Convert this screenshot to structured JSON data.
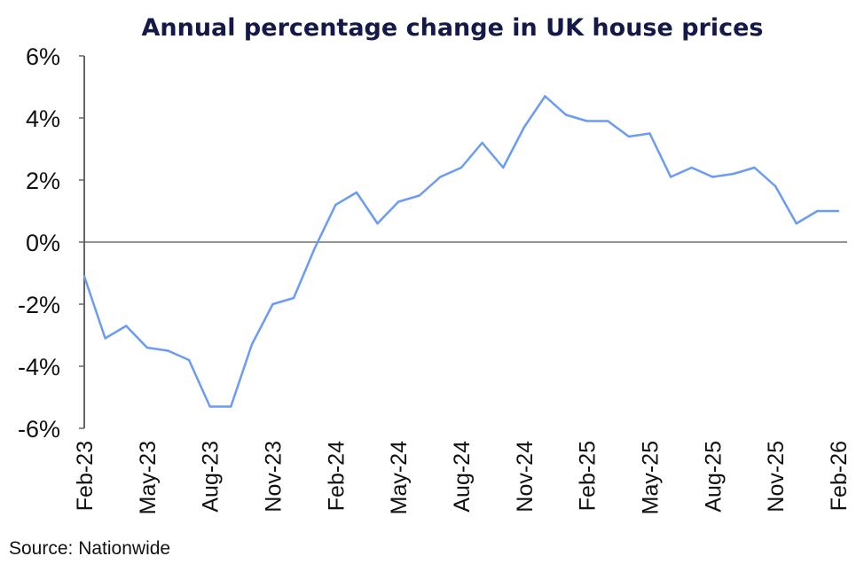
{
  "chart_data": {
    "type": "line",
    "title": "Annual percentage change in UK house prices",
    "xlabel": "",
    "ylabel": "",
    "ylim": [
      -6,
      6
    ],
    "yticks": [
      "6%",
      "4%",
      "2%",
      "0%",
      "-2%",
      "-4%",
      "-6%"
    ],
    "ytick_values": [
      6,
      4,
      2,
      0,
      -2,
      -4,
      -6
    ],
    "xtick_labels": [
      "Feb-23",
      "May-23",
      "Aug-23",
      "Nov-23",
      "Feb-24",
      "May-24",
      "Aug-24",
      "Nov-24",
      "Feb-25",
      "May-25",
      "Aug-25",
      "Nov-25",
      "Feb-26"
    ],
    "x": [
      "Feb-23",
      "Mar-23",
      "Apr-23",
      "May-23",
      "Jun-23",
      "Jul-23",
      "Aug-23",
      "Sep-23",
      "Oct-23",
      "Nov-23",
      "Dec-23",
      "Jan-24",
      "Feb-24",
      "Mar-24",
      "Apr-24",
      "May-24",
      "Jun-24",
      "Jul-24",
      "Aug-24",
      "Sep-24",
      "Oct-24",
      "Nov-24",
      "Dec-24",
      "Jan-25",
      "Feb-25",
      "Mar-25",
      "Apr-25",
      "May-25",
      "Jun-25",
      "Jul-25",
      "Aug-25",
      "Sep-25",
      "Oct-25",
      "Nov-25",
      "Dec-25",
      "Jan-26",
      "Feb-26"
    ],
    "series": [
      {
        "name": "Annual % change",
        "color": "#6b9bf5",
        "values": [
          -1.1,
          -3.1,
          -2.7,
          -3.4,
          -3.5,
          -3.8,
          -5.3,
          -5.3,
          -3.3,
          -2.0,
          -1.8,
          -0.2,
          1.2,
          1.6,
          0.6,
          1.3,
          1.5,
          2.1,
          2.4,
          3.2,
          2.4,
          3.7,
          4.7,
          4.1,
          3.9,
          3.9,
          3.4,
          3.5,
          2.1,
          2.4,
          2.1,
          2.2,
          2.4,
          1.8,
          0.6,
          1.0,
          1.0
        ]
      }
    ],
    "grid": false,
    "legend": "none"
  },
  "source": "Source: Nationwide"
}
